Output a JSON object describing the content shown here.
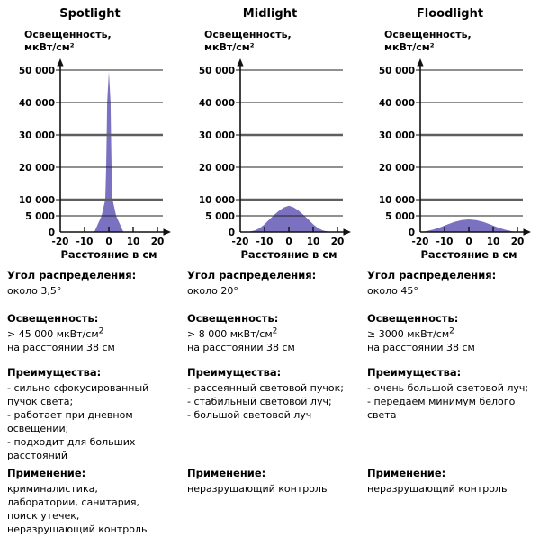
{
  "columns": [
    {
      "title": "Spotlight",
      "sections": {
        "angle": {
          "label": "Угол распределения:",
          "value": "около 3,5°"
        },
        "illuminance": {
          "label": "Освещенность:",
          "value": "> 45 000 мкВт/см",
          "sup": "2",
          "distance": "на расстоянии 38 см"
        },
        "advantages": {
          "label": "Преимущества:",
          "items": [
            "- сильно сфокусированный пучок света;",
            "- работает при дневном освещении;",
            "- подходит для больших расстояний"
          ]
        },
        "application": {
          "label": "Применение:",
          "value": "криминалистика, лаборатории, санитария, поиск утечек, неразрушающий контроль"
        }
      }
    },
    {
      "title": "Midlight",
      "sections": {
        "angle": {
          "label": "Угол распределения:",
          "value": "около 20°"
        },
        "illuminance": {
          "label": "Освещенность:",
          "value": "> 8 000 мкВт/см",
          "sup": "2",
          "distance": "на расстоянии 38 см"
        },
        "advantages": {
          "label": "Преимущества:",
          "items": [
            "- рассеянный световой пучок;",
            "- стабильный световой луч;",
            "- большой световой луч"
          ]
        },
        "application": {
          "label": "Применение:",
          "value": "неразрушающий контроль"
        }
      }
    },
    {
      "title": "Floodlight",
      "sections": {
        "angle": {
          "label": "Угол распределения:",
          "value": "около 45°"
        },
        "illuminance": {
          "label": "Освещенность:",
          "value": "≥ 3000 мкВт/см",
          "sup": "2",
          "distance": "на расстоянии 38 см"
        },
        "advantages": {
          "label": "Преимущества:",
          "items": [
            "- очень большой световой луч;",
            "- передаем минимум белого света"
          ]
        },
        "application": {
          "label": "Применение:",
          "value": "неразрушающий контроль"
        }
      }
    }
  ],
  "chart_data": [
    {
      "type": "area",
      "title": "Spotlight",
      "ylabel_line1": "Освещенность,",
      "ylabel_line2": "мкВт/см²",
      "xlabel": "Расстояние в см",
      "xlim": [
        -20,
        20
      ],
      "ylim": [
        0,
        52000
      ],
      "x_ticks": [
        -20,
        -10,
        0,
        10,
        20
      ],
      "y_ticks": [
        0,
        5000,
        10000,
        20000,
        30000,
        40000,
        50000
      ],
      "bold_gridlines": [
        10000,
        30000
      ],
      "fill_color": "#7a72c0",
      "series": [
        {
          "name": "Spotlight",
          "x": [
            -20,
            -6,
            -3,
            -1.5,
            -1.1,
            -0.9,
            -0.7,
            0,
            0.7,
            0.9,
            1.1,
            1.5,
            3,
            6,
            20
          ],
          "y": [
            0,
            0,
            5000,
            10000,
            20000,
            30000,
            40000,
            49500,
            40000,
            30000,
            20000,
            10000,
            5000,
            0,
            0
          ]
        }
      ]
    },
    {
      "type": "area",
      "title": "Midlight",
      "ylabel_line1": "Освещенность,",
      "ylabel_line2": "мкВт/см²",
      "xlabel": "Расстояние в см",
      "xlim": [
        -20,
        20
      ],
      "ylim": [
        0,
        52000
      ],
      "x_ticks": [
        -20,
        -10,
        0,
        10,
        20
      ],
      "y_ticks": [
        0,
        5000,
        10000,
        20000,
        30000,
        40000,
        50000
      ],
      "bold_gridlines": [
        10000,
        30000
      ],
      "fill_color": "#7a72c0",
      "series": [
        {
          "name": "Midlight",
          "x": [
            -20,
            -17,
            -14,
            -12,
            -10,
            -8,
            -6,
            -4,
            -2,
            0,
            2,
            4,
            6,
            8,
            10,
            12,
            14,
            17,
            20
          ],
          "y": [
            0,
            0,
            500,
            1200,
            2400,
            3900,
            5300,
            6600,
            7600,
            8100,
            7600,
            6600,
            5300,
            3900,
            2400,
            1200,
            500,
            0,
            0
          ]
        }
      ]
    },
    {
      "type": "area",
      "title": "Floodlight",
      "ylabel_line1": "Освещенность,",
      "ylabel_line2": "мкВт/см²",
      "xlabel": "Расстояние в см",
      "xlim": [
        -20,
        20
      ],
      "ylim": [
        0,
        52000
      ],
      "x_ticks": [
        -20,
        -10,
        0,
        10,
        20
      ],
      "y_ticks": [
        0,
        5000,
        10000,
        20000,
        30000,
        40000,
        50000
      ],
      "bold_gridlines": [
        10000,
        30000
      ],
      "fill_color": "#7a72c0",
      "series": [
        {
          "name": "Floodlight",
          "x": [
            -20,
            -18,
            -15,
            -12,
            -9,
            -6,
            -3,
            0,
            3,
            6,
            9,
            12,
            15,
            18,
            20
          ],
          "y": [
            50,
            200,
            700,
            1400,
            2300,
            3100,
            3700,
            3900,
            3700,
            3100,
            2300,
            1400,
            700,
            200,
            50
          ]
        }
      ]
    }
  ]
}
